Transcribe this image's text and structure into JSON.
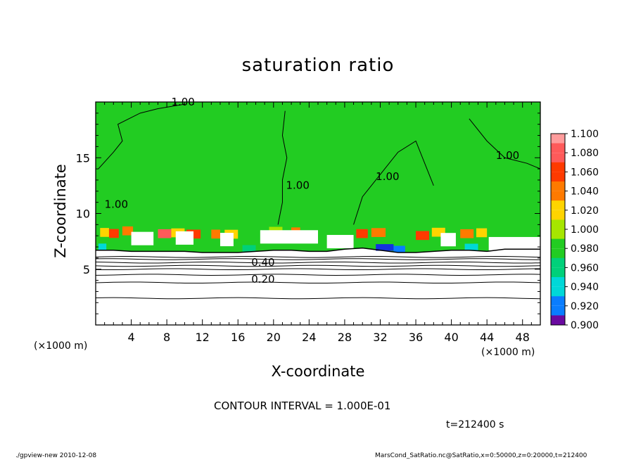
{
  "chart_data": {
    "type": "heatmap",
    "title": "saturation ratio",
    "xlabel": "X-coordinate",
    "ylabel": "Z-coordinate",
    "x_unit": "(×1000 m)",
    "y_unit": "(×1000 m)",
    "xlim": [
      0,
      50
    ],
    "ylim": [
      0,
      20
    ],
    "x_ticks": [
      4,
      8,
      12,
      16,
      20,
      24,
      28,
      32,
      36,
      40,
      44,
      48
    ],
    "y_ticks": [
      5,
      10,
      15
    ],
    "colorbar": {
      "levels": [
        1.1,
        1.08,
        1.06,
        1.04,
        1.02,
        1.0,
        0.98,
        0.96,
        0.94,
        0.92,
        0.9
      ],
      "labels": [
        "1.100",
        "1.080",
        "1.060",
        "1.040",
        "1.020",
        "1.000",
        "0.980",
        "0.960",
        "0.940",
        "0.920",
        "0.900"
      ],
      "colors": [
        "#ff9c9c",
        "#ff5a5a",
        "#ff3a00",
        "#ff7a00",
        "#ffd400",
        "#a6e600",
        "#22cc22",
        "#00d07a",
        "#00d8d8",
        "#0a7dff",
        "#1432e0",
        "#000099",
        "#6a0aa0"
      ]
    },
    "contour_labels": [
      {
        "text": "1.00",
        "x": 1.0,
        "y": 10.5
      },
      {
        "text": "1.00",
        "x": 21.4,
        "y": 12.2
      },
      {
        "text": "1.00",
        "x": 31.5,
        "y": 13.0
      },
      {
        "text": "1.00",
        "x": 45.0,
        "y": 14.9
      },
      {
        "text": "1.00",
        "x": 8.5,
        "y": 19.7
      },
      {
        "text": "0.40",
        "x": 17.5,
        "y": 5.3
      },
      {
        "text": "0.20",
        "x": 17.5,
        "y": 3.8
      }
    ],
    "profile": {
      "x": [
        0,
        2,
        4,
        6,
        8,
        10,
        12,
        14,
        16,
        18,
        20,
        22,
        24,
        26,
        28,
        30,
        32,
        34,
        36,
        38,
        40,
        42,
        44,
        46,
        48,
        50
      ],
      "z_base": [
        6.7,
        6.7,
        6.6,
        6.6,
        6.6,
        6.6,
        6.5,
        6.5,
        6.5,
        6.6,
        6.7,
        6.7,
        6.6,
        6.6,
        6.8,
        6.9,
        6.7,
        6.5,
        6.5,
        6.6,
        6.7,
        6.7,
        6.6,
        6.8,
        6.8,
        6.8
      ],
      "z_top": [
        8.8,
        8.6,
        8.9,
        8.5,
        8.6,
        8.7,
        8.4,
        8.6,
        8.5,
        8.3,
        8.8,
        8.8,
        8.6,
        8.3,
        8.4,
        8.6,
        8.7,
        8.3,
        8.2,
        8.8,
        8.5,
        8.6,
        8.7,
        8.3,
        8.1,
        8.3
      ]
    }
  },
  "contour_interval": "CONTOUR INTERVAL = 1.000E-01",
  "time_label": "t=212400 s",
  "footer_left": "./gpview-new   2010-12-08",
  "footer_right": "MarsCond_SatRatio.nc@SatRatio,x=0:50000,z=0:20000,t=212400"
}
